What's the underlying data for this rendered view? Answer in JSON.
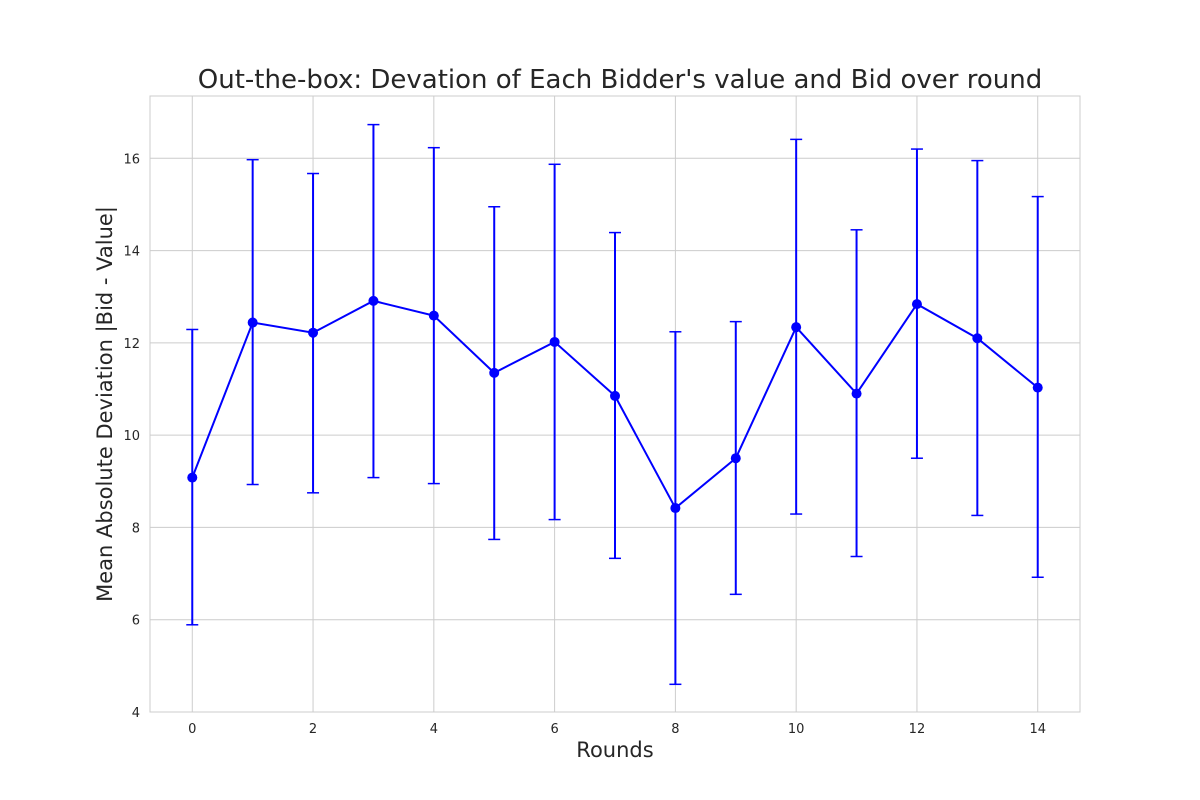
{
  "chart_data": {
    "type": "line",
    "title": "Out-the-box: Devation of Each Bidder's value and Bid over round",
    "xlabel": "Rounds",
    "ylabel": "Mean Absolute Deviation |Bid - Value|",
    "xlim": [
      -0.7,
      14.7
    ],
    "ylim": [
      4,
      17.35
    ],
    "x_ticks": [
      0,
      2,
      4,
      6,
      8,
      10,
      12,
      14
    ],
    "y_ticks": [
      4,
      6,
      8,
      10,
      12,
      14,
      16
    ],
    "grid": true,
    "legend": "none",
    "color": "#0000ff",
    "x": [
      0,
      1,
      2,
      3,
      4,
      5,
      6,
      7,
      8,
      9,
      10,
      11,
      12,
      13,
      14
    ],
    "series": [
      {
        "values": [
          9.08,
          12.44,
          12.22,
          12.91,
          12.59,
          11.35,
          12.02,
          10.85,
          8.42,
          9.5,
          12.34,
          10.9,
          12.84,
          12.1,
          11.03
        ],
        "err_low": [
          5.89,
          8.93,
          8.75,
          9.08,
          8.95,
          7.74,
          8.17,
          7.33,
          4.6,
          6.55,
          8.29,
          7.37,
          9.5,
          8.26,
          6.92
        ],
        "err_high": [
          12.29,
          15.97,
          15.67,
          16.73,
          16.23,
          14.95,
          15.87,
          14.39,
          12.24,
          12.46,
          16.41,
          14.45,
          16.2,
          15.95,
          15.17
        ]
      }
    ]
  }
}
